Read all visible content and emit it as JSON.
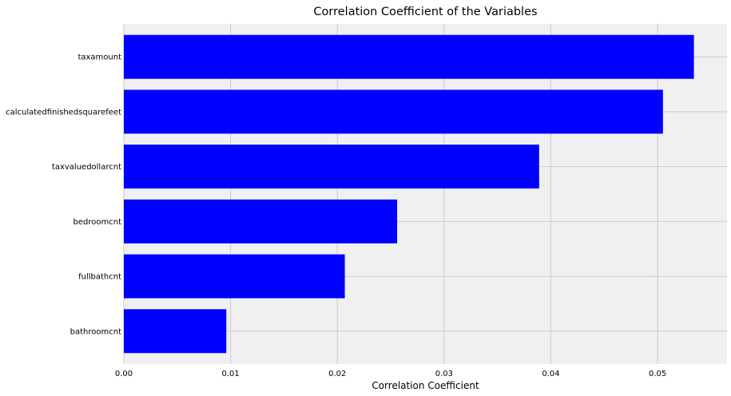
{
  "chart_data": {
    "type": "bar",
    "orientation": "horizontal",
    "title": "Correlation Coefficient of the Variables",
    "xlabel": "Correlation Coefficient",
    "ylabel": "",
    "categories": [
      "bathroomcnt",
      "fullbathcnt",
      "bedroomcnt",
      "taxvaluedollarcnt",
      "calculatedfinishedsquarefeet",
      "taxamount"
    ],
    "values": [
      0.0096,
      0.0207,
      0.0256,
      0.0389,
      0.0505,
      0.0534
    ],
    "xlim": [
      0.0,
      0.0565
    ],
    "xticks": [
      0.0,
      0.01,
      0.02,
      0.03,
      0.04,
      0.05
    ],
    "xtick_labels": [
      "0.00",
      "0.01",
      "0.02",
      "0.03",
      "0.04",
      "0.05"
    ],
    "bar_color": "#0000ff",
    "plot_background": "#f0f0f0",
    "grid": true,
    "grid_color": "#cbcbcb"
  }
}
